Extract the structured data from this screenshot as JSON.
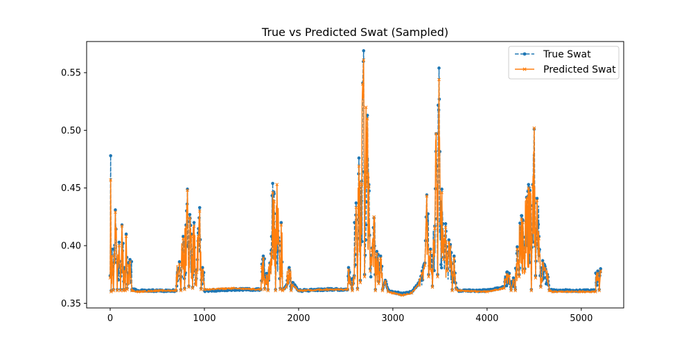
{
  "chart_data": {
    "type": "line",
    "title": "True vs Predicted Swat (Sampled)",
    "xlabel": "",
    "ylabel": "",
    "xlim": [
      -250,
      5450
    ],
    "ylim": [
      0.346,
      0.577
    ],
    "x_ticks": [
      0,
      1000,
      2000,
      3000,
      4000,
      5000
    ],
    "x_tick_labels": [
      "0",
      "1000",
      "2000",
      "3000",
      "4000",
      "5000"
    ],
    "y_ticks": [
      0.35,
      0.4,
      0.45,
      0.5,
      0.55
    ],
    "y_tick_labels": [
      "0.35",
      "0.40",
      "0.45",
      "0.50",
      "0.55"
    ],
    "legend_position": "top-right",
    "baseline": 0.361,
    "series": [
      {
        "name": "True Swat",
        "color": "#1f77b4",
        "linestyle": "dashed",
        "marker": "circle",
        "points": [
          [
            0,
            0.374
          ],
          [
            5,
            0.478
          ],
          [
            10,
            0.361
          ],
          [
            20,
            0.397
          ],
          [
            35,
            0.362
          ],
          [
            55,
            0.431
          ],
          [
            75,
            0.362
          ],
          [
            95,
            0.403
          ],
          [
            110,
            0.362
          ],
          [
            125,
            0.418
          ],
          [
            140,
            0.362
          ],
          [
            150,
            0.381
          ],
          [
            160,
            0.362
          ],
          [
            170,
            0.41
          ],
          [
            180,
            0.363
          ],
          [
            195,
            0.385
          ],
          [
            210,
            0.388
          ],
          [
            230,
            0.362
          ],
          [
            300,
            0.361
          ],
          [
            500,
            0.361
          ],
          [
            700,
            0.361
          ],
          [
            735,
            0.386
          ],
          [
            750,
            0.362
          ],
          [
            775,
            0.408
          ],
          [
            790,
            0.363
          ],
          [
            805,
            0.418
          ],
          [
            820,
            0.449
          ],
          [
            835,
            0.365
          ],
          [
            845,
            0.427
          ],
          [
            860,
            0.41
          ],
          [
            875,
            0.364
          ],
          [
            890,
            0.42
          ],
          [
            905,
            0.367
          ],
          [
            920,
            0.379
          ],
          [
            935,
            0.411
          ],
          [
            950,
            0.433
          ],
          [
            965,
            0.363
          ],
          [
            980,
            0.381
          ],
          [
            1000,
            0.361
          ],
          [
            1300,
            0.362
          ],
          [
            1600,
            0.362
          ],
          [
            1610,
            0.384
          ],
          [
            1625,
            0.391
          ],
          [
            1640,
            0.363
          ],
          [
            1660,
            0.376
          ],
          [
            1675,
            0.362
          ],
          [
            1695,
            0.385
          ],
          [
            1710,
            0.396
          ],
          [
            1725,
            0.454
          ],
          [
            1740,
            0.445
          ],
          [
            1755,
            0.362
          ],
          [
            1770,
            0.421
          ],
          [
            1790,
            0.404
          ],
          [
            1805,
            0.363
          ],
          [
            1815,
            0.42
          ],
          [
            1830,
            0.362
          ],
          [
            1870,
            0.365
          ],
          [
            1900,
            0.381
          ],
          [
            1920,
            0.362
          ],
          [
            1935,
            0.368
          ],
          [
            2000,
            0.361
          ],
          [
            2300,
            0.362
          ],
          [
            2520,
            0.362
          ],
          [
            2530,
            0.381
          ],
          [
            2550,
            0.37
          ],
          [
            2570,
            0.362
          ],
          [
            2590,
            0.374
          ],
          [
            2610,
            0.437
          ],
          [
            2625,
            0.363
          ],
          [
            2640,
            0.476
          ],
          [
            2655,
            0.37
          ],
          [
            2670,
            0.456
          ],
          [
            2680,
            0.541
          ],
          [
            2690,
            0.569
          ],
          [
            2700,
            0.375
          ],
          [
            2715,
            0.418
          ],
          [
            2730,
            0.513
          ],
          [
            2745,
            0.453
          ],
          [
            2760,
            0.38
          ],
          [
            2780,
            0.398
          ],
          [
            2800,
            0.424
          ],
          [
            2815,
            0.362
          ],
          [
            2830,
            0.395
          ],
          [
            2850,
            0.369
          ],
          [
            2870,
            0.391
          ],
          [
            2890,
            0.362
          ],
          [
            2920,
            0.37
          ],
          [
            2950,
            0.361
          ],
          [
            3000,
            0.36
          ],
          [
            3100,
            0.358
          ],
          [
            3200,
            0.36
          ],
          [
            3280,
            0.368
          ],
          [
            3310,
            0.378
          ],
          [
            3340,
            0.385
          ],
          [
            3360,
            0.444
          ],
          [
            3380,
            0.375
          ],
          [
            3400,
            0.397
          ],
          [
            3420,
            0.365
          ],
          [
            3445,
            0.417
          ],
          [
            3460,
            0.497
          ],
          [
            3475,
            0.375
          ],
          [
            3490,
            0.554
          ],
          [
            3505,
            0.421
          ],
          [
            3520,
            0.449
          ],
          [
            3540,
            0.39
          ],
          [
            3560,
            0.419
          ],
          [
            3580,
            0.38
          ],
          [
            3595,
            0.405
          ],
          [
            3610,
            0.401
          ],
          [
            3630,
            0.362
          ],
          [
            3650,
            0.391
          ],
          [
            3670,
            0.363
          ],
          [
            3700,
            0.361
          ],
          [
            4000,
            0.361
          ],
          [
            4180,
            0.364
          ],
          [
            4210,
            0.377
          ],
          [
            4235,
            0.376
          ],
          [
            4255,
            0.362
          ],
          [
            4280,
            0.372
          ],
          [
            4300,
            0.362
          ],
          [
            4320,
            0.399
          ],
          [
            4340,
            0.375
          ],
          [
            4365,
            0.426
          ],
          [
            4380,
            0.422
          ],
          [
            4400,
            0.38
          ],
          [
            4420,
            0.442
          ],
          [
            4440,
            0.453
          ],
          [
            4455,
            0.448
          ],
          [
            4470,
            0.362
          ],
          [
            4485,
            0.453
          ],
          [
            4500,
            0.501
          ],
          [
            4515,
            0.374
          ],
          [
            4530,
            0.441
          ],
          [
            4550,
            0.408
          ],
          [
            4570,
            0.365
          ],
          [
            4590,
            0.387
          ],
          [
            4615,
            0.382
          ],
          [
            4640,
            0.375
          ],
          [
            4660,
            0.362
          ],
          [
            4700,
            0.361
          ],
          [
            5000,
            0.361
          ],
          [
            5150,
            0.361
          ],
          [
            5175,
            0.378
          ],
          [
            5190,
            0.362
          ],
          [
            5205,
            0.38
          ]
        ]
      },
      {
        "name": "Predicted Swat",
        "color": "#ff7f0e",
        "linestyle": "solid",
        "marker": "x",
        "points": [
          [
            0,
            0.372
          ],
          [
            5,
            0.457
          ],
          [
            10,
            0.36
          ],
          [
            20,
            0.391
          ],
          [
            35,
            0.361
          ],
          [
            55,
            0.429
          ],
          [
            75,
            0.361
          ],
          [
            95,
            0.4
          ],
          [
            110,
            0.361
          ],
          [
            125,
            0.417
          ],
          [
            140,
            0.361
          ],
          [
            150,
            0.378
          ],
          [
            160,
            0.361
          ],
          [
            170,
            0.408
          ],
          [
            180,
            0.362
          ],
          [
            195,
            0.383
          ],
          [
            210,
            0.386
          ],
          [
            230,
            0.361
          ],
          [
            300,
            0.36
          ],
          [
            500,
            0.361
          ],
          [
            700,
            0.361
          ],
          [
            735,
            0.384
          ],
          [
            750,
            0.361
          ],
          [
            775,
            0.406
          ],
          [
            790,
            0.362
          ],
          [
            805,
            0.416
          ],
          [
            820,
            0.448
          ],
          [
            835,
            0.364
          ],
          [
            845,
            0.424
          ],
          [
            860,
            0.408
          ],
          [
            875,
            0.363
          ],
          [
            890,
            0.417
          ],
          [
            905,
            0.366
          ],
          [
            920,
            0.377
          ],
          [
            935,
            0.408
          ],
          [
            950,
            0.43
          ],
          [
            965,
            0.362
          ],
          [
            980,
            0.379
          ],
          [
            1000,
            0.362
          ],
          [
            1300,
            0.363
          ],
          [
            1600,
            0.362
          ],
          [
            1610,
            0.381
          ],
          [
            1625,
            0.389
          ],
          [
            1640,
            0.362
          ],
          [
            1660,
            0.374
          ],
          [
            1675,
            0.361
          ],
          [
            1695,
            0.383
          ],
          [
            1710,
            0.393
          ],
          [
            1725,
            0.446
          ],
          [
            1740,
            0.438
          ],
          [
            1755,
            0.361
          ],
          [
            1770,
            0.453
          ],
          [
            1790,
            0.402
          ],
          [
            1805,
            0.362
          ],
          [
            1815,
            0.418
          ],
          [
            1830,
            0.361
          ],
          [
            1870,
            0.364
          ],
          [
            1900,
            0.379
          ],
          [
            1920,
            0.361
          ],
          [
            1935,
            0.366
          ],
          [
            2000,
            0.361
          ],
          [
            2300,
            0.362
          ],
          [
            2520,
            0.362
          ],
          [
            2530,
            0.379
          ],
          [
            2550,
            0.368
          ],
          [
            2570,
            0.361
          ],
          [
            2590,
            0.372
          ],
          [
            2610,
            0.433
          ],
          [
            2625,
            0.362
          ],
          [
            2640,
            0.469
          ],
          [
            2655,
            0.368
          ],
          [
            2670,
            0.453
          ],
          [
            2680,
            0.54
          ],
          [
            2690,
            0.561
          ],
          [
            2700,
            0.373
          ],
          [
            2715,
            0.52
          ],
          [
            2730,
            0.51
          ],
          [
            2745,
            0.451
          ],
          [
            2760,
            0.378
          ],
          [
            2780,
            0.396
          ],
          [
            2800,
            0.425
          ],
          [
            2815,
            0.361
          ],
          [
            2830,
            0.393
          ],
          [
            2850,
            0.367
          ],
          [
            2870,
            0.389
          ],
          [
            2890,
            0.361
          ],
          [
            2920,
            0.369
          ],
          [
            2950,
            0.36
          ],
          [
            3000,
            0.359
          ],
          [
            3100,
            0.357
          ],
          [
            3200,
            0.359
          ],
          [
            3280,
            0.367
          ],
          [
            3310,
            0.376
          ],
          [
            3340,
            0.383
          ],
          [
            3360,
            0.443
          ],
          [
            3380,
            0.373
          ],
          [
            3400,
            0.395
          ],
          [
            3420,
            0.364
          ],
          [
            3445,
            0.415
          ],
          [
            3460,
            0.497
          ],
          [
            3475,
            0.373
          ],
          [
            3490,
            0.544
          ],
          [
            3505,
            0.419
          ],
          [
            3520,
            0.446
          ],
          [
            3540,
            0.388
          ],
          [
            3560,
            0.416
          ],
          [
            3580,
            0.378
          ],
          [
            3595,
            0.403
          ],
          [
            3610,
            0.399
          ],
          [
            3630,
            0.361
          ],
          [
            3650,
            0.389
          ],
          [
            3670,
            0.362
          ],
          [
            3700,
            0.361
          ],
          [
            4000,
            0.36
          ],
          [
            4180,
            0.363
          ],
          [
            4210,
            0.375
          ],
          [
            4235,
            0.374
          ],
          [
            4255,
            0.361
          ],
          [
            4280,
            0.37
          ],
          [
            4300,
            0.361
          ],
          [
            4320,
            0.397
          ],
          [
            4340,
            0.373
          ],
          [
            4365,
            0.423
          ],
          [
            4380,
            0.42
          ],
          [
            4400,
            0.378
          ],
          [
            4420,
            0.44
          ],
          [
            4440,
            0.45
          ],
          [
            4455,
            0.446
          ],
          [
            4470,
            0.361
          ],
          [
            4485,
            0.451
          ],
          [
            4500,
            0.502
          ],
          [
            4515,
            0.372
          ],
          [
            4530,
            0.439
          ],
          [
            4550,
            0.406
          ],
          [
            4570,
            0.364
          ],
          [
            4590,
            0.385
          ],
          [
            4615,
            0.38
          ],
          [
            4640,
            0.373
          ],
          [
            4660,
            0.361
          ],
          [
            4700,
            0.36
          ],
          [
            5000,
            0.36
          ],
          [
            5150,
            0.36
          ],
          [
            5175,
            0.376
          ],
          [
            5190,
            0.361
          ],
          [
            5205,
            0.378
          ]
        ]
      }
    ]
  }
}
